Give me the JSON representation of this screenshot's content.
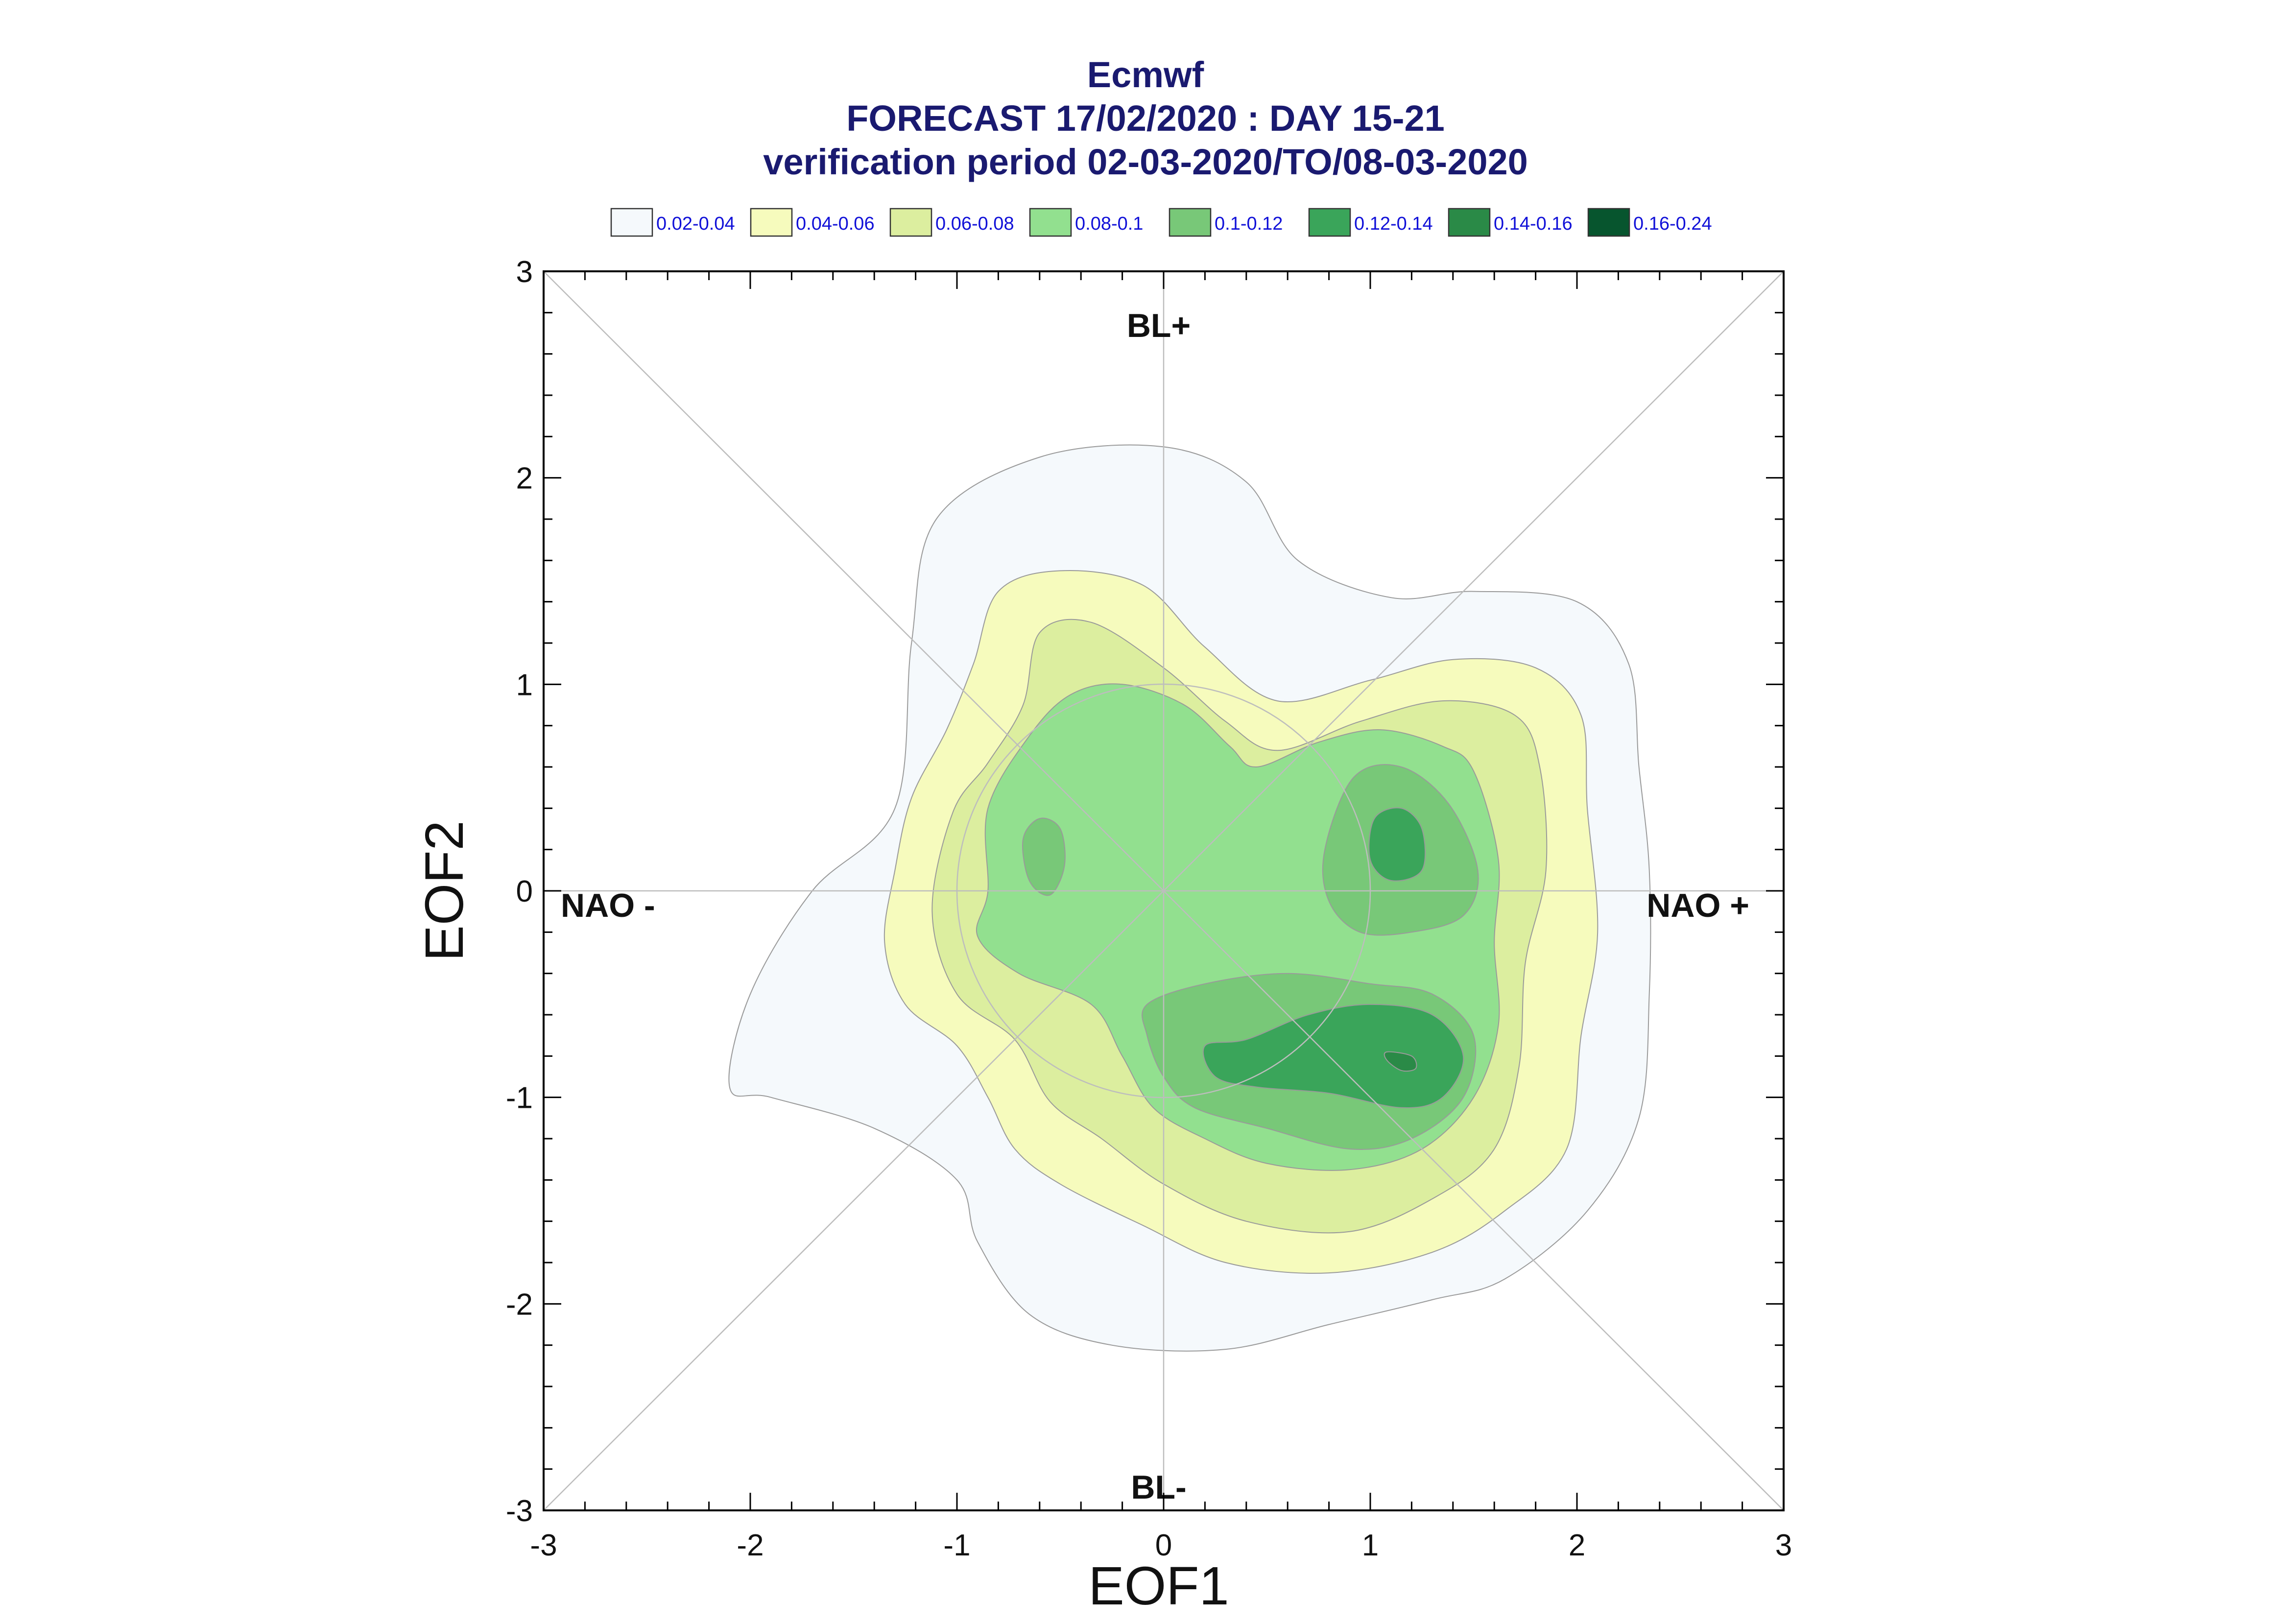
{
  "chart_data": {
    "type": "contour",
    "title_lines": [
      "Ecmwf",
      "FORECAST 17/02/2020 : DAY 15-21",
      "verification period 02-03-2020/TO/08-03-2020"
    ],
    "xlabel": "EOF1",
    "ylabel": "EOF2",
    "xlim": [
      -3,
      3
    ],
    "ylim": [
      -3,
      3
    ],
    "x_ticks": [
      -3,
      -2,
      -1,
      0,
      1,
      2,
      3
    ],
    "y_ticks": [
      -3,
      -2,
      -1,
      0,
      1,
      2,
      3
    ],
    "x_tick_labels": [
      "-3",
      "-2",
      "-1",
      "0",
      "1",
      "2",
      "3"
    ],
    "y_tick_labels": [
      "-3",
      "-2",
      "-1",
      "0",
      "1",
      "2",
      "3"
    ],
    "regime_labels": {
      "top": "BL+",
      "bottom": "BL-",
      "left": "NAO -",
      "right": "NAO +"
    },
    "reference_circle_radius": 1,
    "diagonals": true,
    "legend": {
      "position": "top",
      "entries": [
        {
          "label": "0.02-0.04",
          "color": "#f5f9fc"
        },
        {
          "label": "0.04-0.06",
          "color": "#f6fbbd"
        },
        {
          "label": "0.06-0.08",
          "color": "#dcee9f"
        },
        {
          "label": "0.08-0.1",
          "color": "#92e08f"
        },
        {
          "label": "0.1-0.12",
          "color": "#78c878"
        },
        {
          "label": "0.12-0.14",
          "color": "#3aa55a"
        },
        {
          "label": "0.14-0.16",
          "color": "#2a8a47"
        },
        {
          "label": "0.16-0.24",
          "color": "#07552e"
        }
      ]
    },
    "contour_levels": [
      {
        "level": "0.02-0.04",
        "polygons": [
          [
            [
              -2.1,
              -0.95
            ],
            [
              -1.9,
              -1.0
            ],
            [
              -1.4,
              -1.15
            ],
            [
              -1.0,
              -1.4
            ],
            [
              -0.9,
              -1.7
            ],
            [
              -0.65,
              -2.05
            ],
            [
              -0.25,
              -2.2
            ],
            [
              0.3,
              -2.22
            ],
            [
              0.8,
              -2.1
            ],
            [
              1.3,
              -1.98
            ],
            [
              1.65,
              -1.88
            ],
            [
              2.05,
              -1.55
            ],
            [
              2.3,
              -1.1
            ],
            [
              2.35,
              -0.5
            ],
            [
              2.35,
              0.1
            ],
            [
              2.3,
              0.6
            ],
            [
              2.25,
              1.1
            ],
            [
              2.0,
              1.4
            ],
            [
              1.5,
              1.45
            ],
            [
              1.1,
              1.42
            ],
            [
              0.65,
              1.6
            ],
            [
              0.4,
              1.98
            ],
            [
              0.0,
              2.15
            ],
            [
              -0.6,
              2.1
            ],
            [
              -1.1,
              1.8
            ],
            [
              -1.22,
              1.2
            ],
            [
              -1.3,
              0.4
            ],
            [
              -1.7,
              0.0
            ],
            [
              -2.0,
              -0.5
            ],
            [
              -2.1,
              -0.95
            ]
          ]
        ]
      },
      {
        "level": "0.04-0.06",
        "polygons": [
          [
            [
              -1.35,
              -0.25
            ],
            [
              -1.25,
              -0.55
            ],
            [
              -1.0,
              -0.75
            ],
            [
              -0.85,
              -1.0
            ],
            [
              -0.72,
              -1.25
            ],
            [
              -0.5,
              -1.42
            ],
            [
              -0.1,
              -1.62
            ],
            [
              0.3,
              -1.8
            ],
            [
              0.8,
              -1.85
            ],
            [
              1.3,
              -1.75
            ],
            [
              1.65,
              -1.55
            ],
            [
              1.95,
              -1.25
            ],
            [
              2.02,
              -0.7
            ],
            [
              2.1,
              -0.2
            ],
            [
              2.05,
              0.4
            ],
            [
              2.02,
              0.85
            ],
            [
              1.8,
              1.08
            ],
            [
              1.4,
              1.12
            ],
            [
              1.0,
              1.02
            ],
            [
              0.55,
              0.92
            ],
            [
              0.2,
              1.18
            ],
            [
              -0.1,
              1.48
            ],
            [
              -0.5,
              1.55
            ],
            [
              -0.8,
              1.45
            ],
            [
              -0.92,
              1.1
            ],
            [
              -1.05,
              0.78
            ],
            [
              -1.22,
              0.45
            ],
            [
              -1.3,
              0.1
            ],
            [
              -1.35,
              -0.25
            ]
          ]
        ]
      },
      {
        "level": "0.06-0.08",
        "polygons": [
          [
            [
              -1.12,
              -0.1
            ],
            [
              -1.0,
              -0.5
            ],
            [
              -0.72,
              -0.72
            ],
            [
              -0.55,
              -1.02
            ],
            [
              -0.3,
              -1.2
            ],
            [
              0.0,
              -1.42
            ],
            [
              0.4,
              -1.6
            ],
            [
              0.9,
              -1.65
            ],
            [
              1.32,
              -1.48
            ],
            [
              1.6,
              -1.25
            ],
            [
              1.72,
              -0.85
            ],
            [
              1.75,
              -0.35
            ],
            [
              1.85,
              0.1
            ],
            [
              1.82,
              0.6
            ],
            [
              1.7,
              0.85
            ],
            [
              1.35,
              0.92
            ],
            [
              0.95,
              0.82
            ],
            [
              0.55,
              0.68
            ],
            [
              0.3,
              0.82
            ],
            [
              0.0,
              1.08
            ],
            [
              -0.35,
              1.3
            ],
            [
              -0.6,
              1.25
            ],
            [
              -0.68,
              0.9
            ],
            [
              -0.85,
              0.62
            ],
            [
              -1.02,
              0.38
            ],
            [
              -1.12,
              -0.1
            ]
          ]
        ]
      },
      {
        "level": "0.08-0.1",
        "polygons": [
          [
            [
              -0.85,
              0.0
            ],
            [
              -0.9,
              -0.22
            ],
            [
              -0.7,
              -0.4
            ],
            [
              -0.35,
              -0.55
            ],
            [
              -0.2,
              -0.8
            ],
            [
              -0.05,
              -1.05
            ],
            [
              0.2,
              -1.2
            ],
            [
              0.5,
              -1.32
            ],
            [
              0.9,
              -1.35
            ],
            [
              1.25,
              -1.25
            ],
            [
              1.5,
              -1.0
            ],
            [
              1.62,
              -0.65
            ],
            [
              1.6,
              -0.25
            ],
            [
              1.62,
              0.15
            ],
            [
              1.5,
              0.58
            ],
            [
              1.35,
              0.7
            ],
            [
              1.05,
              0.78
            ],
            [
              0.75,
              0.72
            ],
            [
              0.45,
              0.6
            ],
            [
              0.32,
              0.7
            ],
            [
              0.1,
              0.9
            ],
            [
              -0.2,
              1.0
            ],
            [
              -0.45,
              0.95
            ],
            [
              -0.65,
              0.75
            ],
            [
              -0.85,
              0.4
            ],
            [
              -0.85,
              0.0
            ]
          ]
        ]
      },
      {
        "level": "0.1-0.12",
        "polygons": [
          [
            [
              0.78,
              0.2
            ],
            [
              0.8,
              -0.05
            ],
            [
              0.95,
              -0.2
            ],
            [
              1.2,
              -0.2
            ],
            [
              1.45,
              -0.12
            ],
            [
              1.52,
              0.1
            ],
            [
              1.38,
              0.42
            ],
            [
              1.15,
              0.6
            ],
            [
              0.92,
              0.55
            ],
            [
              0.78,
              0.2
            ]
          ],
          [
            [
              -0.65,
              0.05
            ],
            [
              -0.55,
              -0.02
            ],
            [
              -0.48,
              0.12
            ],
            [
              -0.5,
              0.3
            ],
            [
              -0.6,
              0.35
            ],
            [
              -0.68,
              0.25
            ],
            [
              -0.65,
              0.05
            ]
          ],
          [
            [
              -0.08,
              -0.55
            ],
            [
              0.2,
              -0.45
            ],
            [
              0.6,
              -0.4
            ],
            [
              1.0,
              -0.45
            ],
            [
              1.3,
              -0.5
            ],
            [
              1.5,
              -0.7
            ],
            [
              1.45,
              -1.0
            ],
            [
              1.2,
              -1.2
            ],
            [
              0.9,
              -1.25
            ],
            [
              0.5,
              -1.15
            ],
            [
              0.15,
              -1.05
            ],
            [
              0.0,
              -0.9
            ],
            [
              -0.08,
              -0.7
            ],
            [
              -0.08,
              -0.55
            ]
          ]
        ]
      },
      {
        "level": "0.12-0.14",
        "polygons": [
          [
            [
              1.0,
              0.15
            ],
            [
              1.1,
              0.05
            ],
            [
              1.25,
              0.1
            ],
            [
              1.25,
              0.3
            ],
            [
              1.15,
              0.4
            ],
            [
              1.02,
              0.35
            ],
            [
              1.0,
              0.15
            ]
          ],
          [
            [
              0.2,
              -0.75
            ],
            [
              0.4,
              -0.72
            ],
            [
              0.7,
              -0.6
            ],
            [
              1.0,
              -0.55
            ],
            [
              1.3,
              -0.6
            ],
            [
              1.45,
              -0.8
            ],
            [
              1.35,
              -1.0
            ],
            [
              1.15,
              -1.05
            ],
            [
              0.8,
              -0.98
            ],
            [
              0.45,
              -0.95
            ],
            [
              0.25,
              -0.9
            ],
            [
              0.2,
              -0.75
            ]
          ]
        ]
      },
      {
        "level": "0.14-0.16",
        "polygons": [
          [
            [
              1.08,
              -0.78
            ],
            [
              1.2,
              -0.8
            ],
            [
              1.22,
              -0.86
            ],
            [
              1.15,
              -0.87
            ],
            [
              1.08,
              -0.82
            ],
            [
              1.08,
              -0.78
            ]
          ]
        ]
      }
    ]
  }
}
